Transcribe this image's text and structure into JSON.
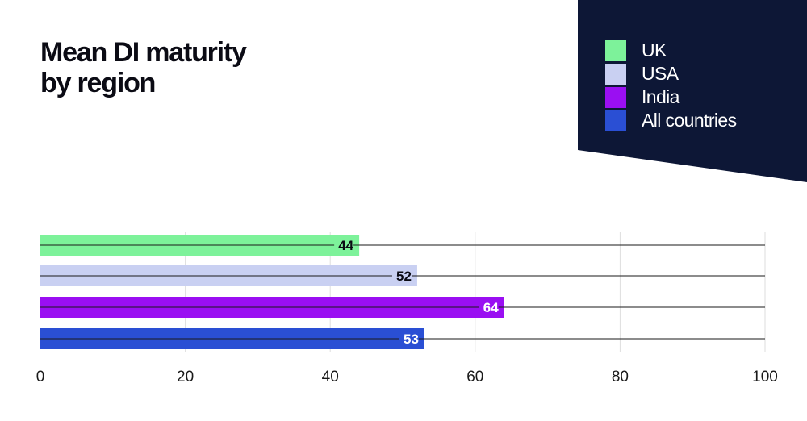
{
  "chart_data": {
    "type": "bar",
    "orientation": "horizontal",
    "title": "Mean DI maturity by region",
    "title_lines": [
      "Mean DI maturity",
      "by region"
    ],
    "categories": [
      "UK",
      "USA",
      "India",
      "All countries"
    ],
    "values": [
      44,
      52,
      64,
      53
    ],
    "colors": [
      "#7df29a",
      "#c9d0f2",
      "#9a0ff2",
      "#2a4fd4"
    ],
    "value_label_colors": [
      "#0b0b14",
      "#0b0b14",
      "#ffffff",
      "#ffffff"
    ],
    "xlim": [
      0,
      100
    ],
    "xticks": [
      0,
      20,
      40,
      60,
      80,
      100
    ],
    "xlabel": "",
    "ylabel": "",
    "grid": true,
    "legend_position": "top-right",
    "legend": [
      {
        "label": "UK",
        "color": "#7df29a"
      },
      {
        "label": "USA",
        "color": "#c9d0f2"
      },
      {
        "label": "India",
        "color": "#9a0ff2"
      },
      {
        "label": "All countries",
        "color": "#2a4fd4"
      }
    ]
  },
  "theme": {
    "panel_color": "#0d1736",
    "axis_line_color": "#1a1a1a",
    "grid_color": "#dedede"
  }
}
